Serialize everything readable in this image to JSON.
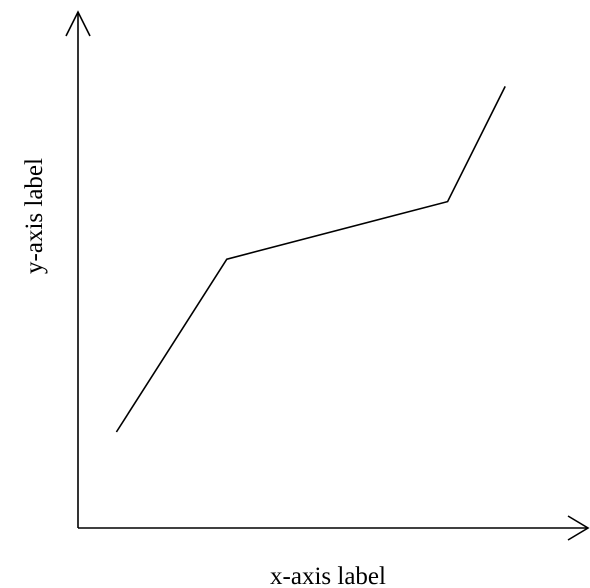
{
  "chart_data": {
    "type": "line",
    "title": "",
    "xlabel": "x-axis label",
    "ylabel": "y-axis label",
    "xlim": [
      0,
      10
    ],
    "ylim": [
      0,
      10
    ],
    "grid": false,
    "legend": "none",
    "ticks": false,
    "series": [
      {
        "color": "#000000",
        "points": [
          {
            "x": 0.8,
            "y": 2.0
          },
          {
            "x": 3.1,
            "y": 5.6
          },
          {
            "x": 7.7,
            "y": 6.8
          },
          {
            "x": 8.9,
            "y": 9.2
          }
        ]
      }
    ]
  }
}
